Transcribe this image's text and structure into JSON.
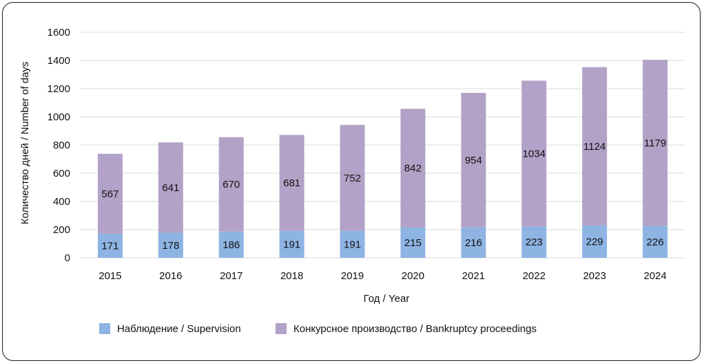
{
  "chart_data": {
    "type": "bar",
    "stacked": true,
    "categories": [
      "2015",
      "2016",
      "2017",
      "2018",
      "2019",
      "2020",
      "2021",
      "2022",
      "2023",
      "2024"
    ],
    "series": [
      {
        "name": "Наблюдение / Supervision",
        "color": "#8eb4e3",
        "values": [
          171,
          178,
          186,
          191,
          191,
          215,
          216,
          223,
          229,
          226
        ]
      },
      {
        "name": "Конкурсное производство / Bankruptcy proceedings",
        "color": "#b3a2c7",
        "values": [
          567,
          641,
          670,
          681,
          752,
          842,
          954,
          1034,
          1124,
          1179
        ]
      }
    ],
    "xlabel": "Год / Year",
    "ylabel": "Количество дней / Number of days",
    "ylim": [
      0,
      1600
    ],
    "yticks": [
      0,
      200,
      400,
      600,
      800,
      1000,
      1200,
      1400,
      1600
    ],
    "grid": true,
    "legend_position": "bottom"
  }
}
